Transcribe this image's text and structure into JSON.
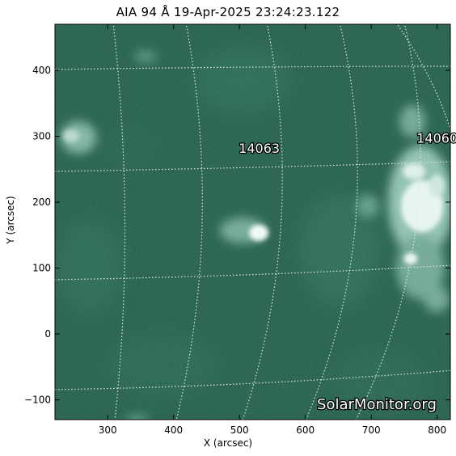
{
  "title": "AIA 94 Å 19-Apr-2025 23:24:23.122",
  "xlabel": "X (arcsec)",
  "ylabel": "Y (arcsec)",
  "watermark": "SolarMonitor.org",
  "x_ticks": [
    "300",
    "400",
    "500",
    "600",
    "700",
    "800"
  ],
  "y_ticks": [
    "400",
    "300",
    "200",
    "100",
    "0",
    "−100"
  ],
  "regions": [
    {
      "label": "14063",
      "x": 530,
      "y": 275
    },
    {
      "label": "14060",
      "x": 800,
      "y": 290
    }
  ],
  "colors": {
    "background": "#1f5a47",
    "grid": "#dde8e3",
    "frame": "#000000"
  },
  "chart_data": {
    "type": "heatmap",
    "title": "AIA 94 Å 19-Apr-2025 23:24:23.122",
    "xlabel": "X (arcsec)",
    "ylabel": "Y (arcsec)",
    "xlim": [
      220,
      820
    ],
    "ylim": [
      -130,
      470
    ],
    "x_ticks": [
      300,
      400,
      500,
      600,
      700,
      800
    ],
    "y_ticks": [
      -100,
      0,
      100,
      200,
      300,
      400
    ],
    "grid": true
  }
}
